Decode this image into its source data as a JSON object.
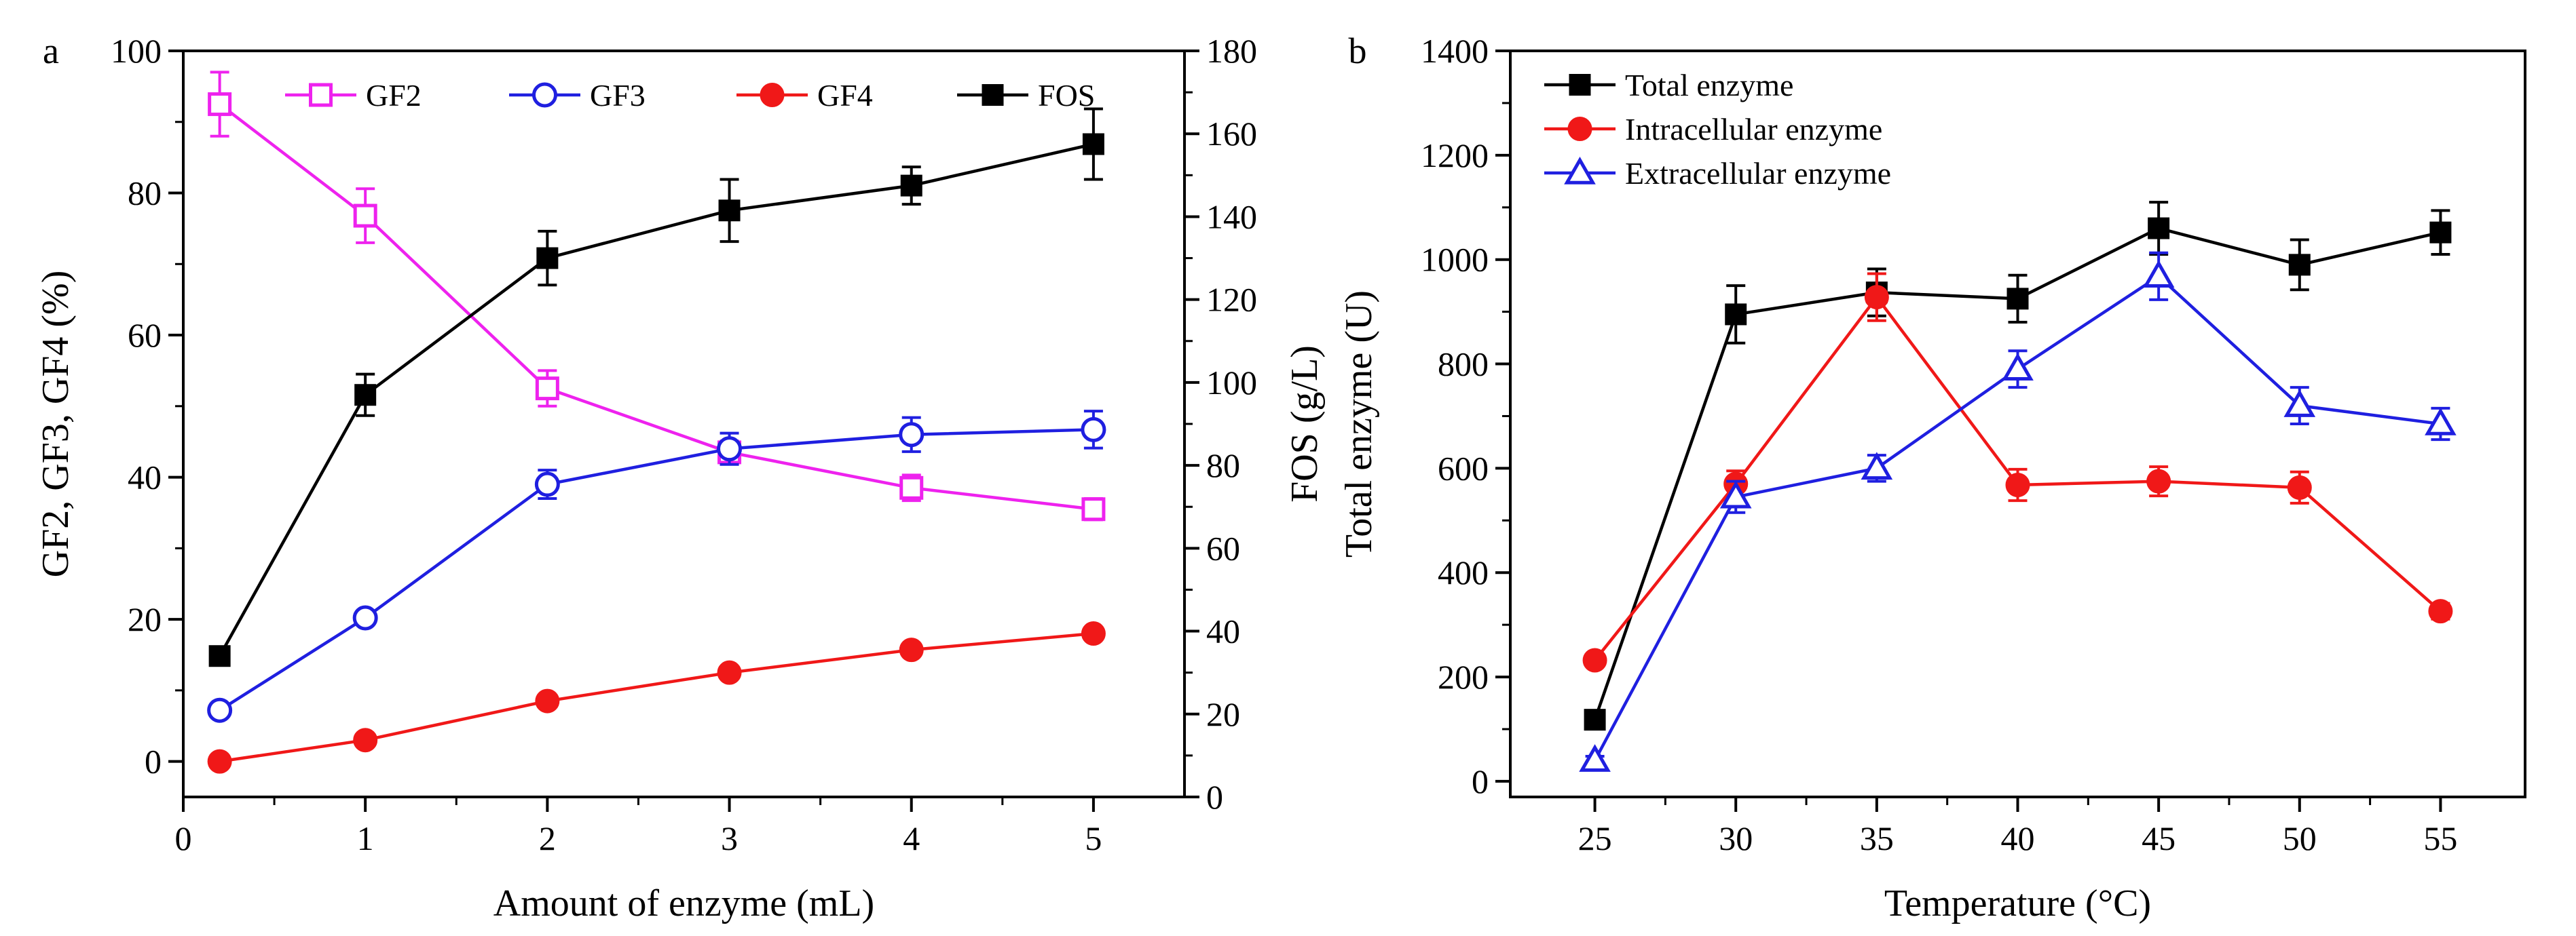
{
  "chart_data": [
    {
      "type": "line",
      "panel_label": "a",
      "xlabel": "Amount of enzyme (mL)",
      "ylabel": "GF2, GF3, GF4 (%)",
      "y2label": "FOS (g/L)",
      "xlim": [
        0,
        5.5
      ],
      "ylim": [
        -5,
        100
      ],
      "y2lim": [
        0,
        180
      ],
      "xticks": [
        0,
        1,
        2,
        3,
        4,
        5
      ],
      "yticks": [
        0,
        20,
        40,
        60,
        80,
        100
      ],
      "y2ticks": [
        0,
        20,
        40,
        60,
        80,
        100,
        120,
        140,
        160,
        180
      ],
      "legend_position": "top",
      "series": [
        {
          "name": "GF2",
          "axis": "left",
          "color": "#ee22ee",
          "marker": "square-open",
          "x": [
            0.2,
            1,
            2,
            3,
            4,
            5
          ],
          "values": [
            92.5,
            76.8,
            52.5,
            43.5,
            38.5,
            35.5
          ],
          "errors": [
            4.5,
            3.8,
            2.5,
            1.6,
            1.8,
            1.5
          ]
        },
        {
          "name": "GF3",
          "axis": "left",
          "color": "#1f1fe0",
          "marker": "circle-open",
          "x": [
            0.2,
            1,
            2,
            3,
            4,
            5
          ],
          "values": [
            7.2,
            20.2,
            39.0,
            44.0,
            46.0,
            46.7
          ],
          "errors": [
            0.9,
            0.9,
            2.0,
            2.2,
            2.4,
            2.6
          ]
        },
        {
          "name": "GF4",
          "axis": "left",
          "color": "#f01818",
          "marker": "circle-filled",
          "x": [
            0.2,
            1,
            2,
            3,
            4,
            5
          ],
          "values": [
            0.0,
            3.0,
            8.5,
            12.5,
            15.7,
            18.0
          ],
          "errors": [
            0,
            0,
            0,
            0,
            0,
            0
          ]
        },
        {
          "name": "FOS",
          "axis": "right",
          "color": "#000000",
          "marker": "square-filled",
          "x": [
            0.2,
            1,
            2,
            3,
            4,
            5
          ],
          "values": [
            34.0,
            97.0,
            130.0,
            141.5,
            147.5,
            157.5
          ],
          "errors": [
            2.0,
            5.0,
            6.5,
            7.5,
            4.5,
            8.5
          ]
        }
      ]
    },
    {
      "type": "line",
      "panel_label": "b",
      "xlabel": "Temperature (°C)",
      "ylabel": "Total enzyme (U)",
      "xlim": [
        22,
        58
      ],
      "ylim": [
        -30,
        1400
      ],
      "xticks": [
        25,
        30,
        35,
        40,
        45,
        50,
        55
      ],
      "yticks": [
        0,
        200,
        400,
        600,
        800,
        1000,
        1200,
        1400
      ],
      "legend_position": "top-left",
      "series": [
        {
          "name": "Total enzyme",
          "color": "#000000",
          "marker": "square-filled",
          "x": [
            25,
            30,
            35,
            40,
            45,
            50,
            55
          ],
          "values": [
            118,
            895,
            937,
            925,
            1060,
            990,
            1052
          ],
          "errors": [
            8,
            55,
            45,
            45,
            50,
            48,
            42
          ]
        },
        {
          "name": "Intracellular enzyme",
          "color": "#f01818",
          "marker": "circle-filled",
          "x": [
            25,
            30,
            35,
            40,
            45,
            50,
            55
          ],
          "values": [
            232,
            570,
            928,
            568,
            575,
            563,
            326
          ],
          "errors": [
            8,
            25,
            45,
            30,
            28,
            30,
            15
          ]
        },
        {
          "name": "Extracellular enzyme",
          "color": "#1f1fe0",
          "marker": "triangle-open",
          "x": [
            25,
            30,
            35,
            40,
            45,
            50,
            55
          ],
          "values": [
            40,
            545,
            600,
            790,
            968,
            720,
            685
          ],
          "errors": [
            8,
            30,
            25,
            35,
            45,
            35,
            30
          ]
        }
      ]
    }
  ]
}
